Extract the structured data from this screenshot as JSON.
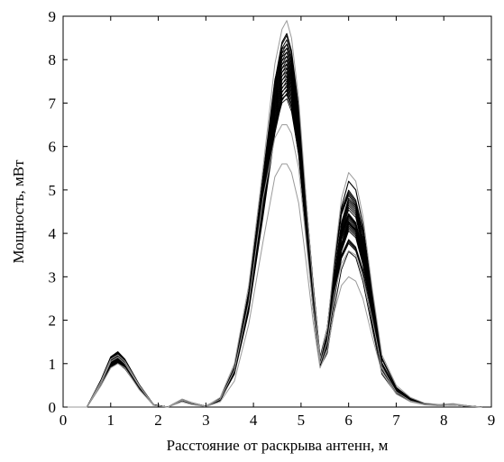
{
  "chart_data": {
    "type": "line",
    "title": "",
    "xlabel": "Расстояние от раскрыва антенн, м",
    "ylabel": "Мощность, мВт",
    "xlim": [
      0,
      9
    ],
    "ylim": [
      0,
      9
    ],
    "xticks": [
      "0",
      "1",
      "2",
      "3",
      "4",
      "5",
      "6",
      "7",
      "8",
      "9"
    ],
    "yticks": [
      "0",
      "1",
      "2",
      "3",
      "4",
      "5",
      "6",
      "7",
      "8",
      "9"
    ],
    "grid": false,
    "box": true,
    "series_count": 30,
    "series_color": "#000000",
    "gray_series_color": "#9a9a9a",
    "series": [
      {
        "x": [
          0.0,
          0.5,
          0.8,
          1.0,
          1.15,
          1.3,
          1.6,
          1.9,
          2.2,
          2.5,
          2.7,
          3.0,
          3.3,
          3.6,
          3.9,
          4.2,
          4.45,
          4.6,
          4.7,
          4.8,
          4.95,
          5.1,
          5.25,
          5.4,
          5.55,
          5.7,
          5.85,
          6.0,
          6.15,
          6.3,
          6.5,
          6.7,
          7.0,
          7.3,
          7.6,
          7.9,
          8.2,
          8.5,
          8.8
        ],
        "y": [
          0.0,
          0.0,
          0.6,
          1.1,
          1.2,
          1.05,
          0.5,
          0.05,
          0.0,
          0.18,
          0.1,
          0.02,
          0.2,
          0.9,
          2.6,
          5.2,
          7.5,
          8.4,
          8.6,
          8.2,
          6.9,
          4.8,
          2.7,
          1.1,
          1.8,
          3.3,
          4.6,
          5.2,
          5.0,
          4.2,
          2.6,
          1.1,
          0.45,
          0.2,
          0.08,
          0.05,
          0.07,
          0.03,
          0.0
        ]
      },
      {
        "x": [
          0.0,
          0.5,
          0.8,
          1.0,
          1.15,
          1.3,
          1.6,
          1.9,
          2.2,
          2.5,
          2.7,
          3.0,
          3.3,
          3.6,
          3.9,
          4.2,
          4.45,
          4.6,
          4.7,
          4.8,
          4.95,
          5.1,
          5.25,
          5.4,
          5.55,
          5.7,
          5.85,
          6.0,
          6.15,
          6.3,
          6.5,
          6.7,
          7.0,
          7.3,
          7.6,
          7.9,
          8.2,
          8.5,
          8.8
        ],
        "y": [
          0.0,
          0.0,
          0.55,
          1.0,
          1.1,
          0.95,
          0.45,
          0.05,
          0.0,
          0.15,
          0.08,
          0.02,
          0.15,
          0.8,
          2.3,
          4.6,
          6.5,
          7.1,
          7.2,
          6.9,
          5.9,
          4.2,
          2.5,
          1.0,
          1.6,
          2.9,
          4.0,
          4.4,
          4.2,
          3.6,
          2.2,
          1.0,
          0.4,
          0.15,
          0.07,
          0.04,
          0.06,
          0.02,
          0.0
        ]
      },
      {
        "x": [
          0.0,
          0.5,
          0.8,
          1.0,
          1.15,
          1.3,
          1.6,
          1.9,
          2.2,
          2.5,
          2.7,
          3.0,
          3.3,
          3.6,
          3.9,
          4.2,
          4.45,
          4.6,
          4.7,
          4.8,
          4.95,
          5.1,
          5.25,
          5.4,
          5.55,
          5.7,
          5.85,
          6.0,
          6.15,
          6.3,
          6.5,
          6.7,
          7.0,
          7.3,
          7.6,
          7.9,
          8.2,
          8.5,
          8.8
        ],
        "y": [
          0.0,
          0.0,
          0.5,
          0.9,
          1.0,
          0.9,
          0.4,
          0.04,
          0.0,
          0.12,
          0.06,
          0.01,
          0.12,
          0.6,
          1.9,
          3.8,
          5.3,
          5.6,
          5.6,
          5.4,
          4.7,
          3.4,
          2.0,
          0.9,
          1.3,
          2.2,
          2.8,
          3.0,
          2.9,
          2.5,
          1.6,
          0.8,
          0.3,
          0.12,
          0.05,
          0.03,
          0.05,
          0.02,
          0.0
        ],
        "gray": true
      },
      {
        "x": [
          0.0,
          0.5,
          0.8,
          1.0,
          1.15,
          1.3,
          1.6,
          1.9,
          2.2,
          2.5,
          2.7,
          3.0,
          3.3,
          3.6,
          3.9,
          4.2,
          4.45,
          4.6,
          4.7,
          4.8,
          4.95,
          5.1,
          5.25,
          5.4,
          5.55,
          5.7,
          5.85,
          6.0,
          6.15,
          6.3,
          6.5,
          6.7,
          7.0,
          7.3,
          7.6,
          7.9,
          8.2,
          8.5,
          8.8
        ],
        "y": [
          0.0,
          0.0,
          0.55,
          1.05,
          1.15,
          1.0,
          0.48,
          0.05,
          0.0,
          0.16,
          0.09,
          0.02,
          0.18,
          0.85,
          2.4,
          4.8,
          6.2,
          6.5,
          6.5,
          6.3,
          5.5,
          3.9,
          2.3,
          1.0,
          1.5,
          2.6,
          3.3,
          3.6,
          3.5,
          3.0,
          2.0,
          0.9,
          0.35,
          0.14,
          0.06,
          0.04,
          0.06,
          0.02,
          0.0
        ],
        "gray": true
      },
      {
        "x": [
          0.0,
          0.5,
          0.8,
          1.0,
          1.15,
          1.3,
          1.6,
          1.9,
          2.2,
          2.5,
          2.7,
          3.0,
          3.3,
          3.6,
          3.9,
          4.2,
          4.45,
          4.6,
          4.7,
          4.8,
          4.95,
          5.1,
          5.25,
          5.4,
          5.55,
          5.7,
          5.85,
          6.0,
          6.15,
          6.3,
          6.5,
          6.7,
          7.0,
          7.3,
          7.6,
          7.9,
          8.2,
          8.5,
          8.8
        ],
        "y": [
          0.0,
          0.0,
          0.6,
          1.1,
          1.2,
          1.05,
          0.5,
          0.05,
          0.0,
          0.18,
          0.1,
          0.02,
          0.22,
          1.0,
          2.8,
          5.5,
          7.9,
          8.7,
          8.9,
          8.5,
          7.1,
          4.9,
          2.8,
          1.1,
          1.8,
          3.4,
          4.8,
          5.4,
          5.2,
          4.4,
          2.7,
          1.2,
          0.5,
          0.22,
          0.09,
          0.06,
          0.08,
          0.03,
          0.0
        ],
        "gray": true
      }
    ]
  }
}
